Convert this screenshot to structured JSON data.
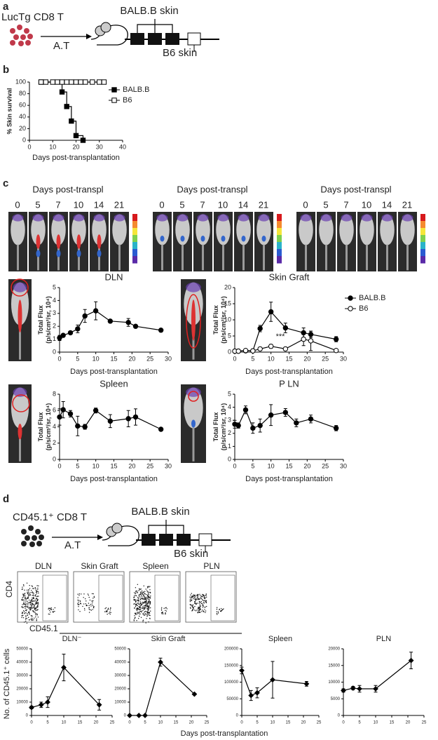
{
  "panel_labels": [
    "a",
    "b",
    "c",
    "d"
  ],
  "diagram_a": {
    "cells": "LucTg CD8 T",
    "transfer": "A.T",
    "graft1": "BALB.B skin",
    "graft2": "B6 skin"
  },
  "images_c": [
    {
      "header": "Days post-transpl",
      "days": [
        "0",
        "5",
        "7",
        "10",
        "14",
        "21"
      ]
    },
    {
      "header": "Days post-transpl",
      "days": [
        "0",
        "5",
        "7",
        "10",
        "14",
        "21"
      ]
    },
    {
      "header": "Days post-transpl",
      "days": [
        "0",
        "5",
        "7",
        "10",
        "14",
        "21"
      ]
    }
  ],
  "diagram_d": {
    "cells": "CD45.1⁺ CD8 T",
    "transfer": "A.T",
    "graft1": "BALB.B skin",
    "graft2": "B6 skin"
  },
  "flow_d": {
    "titles": [
      "DLN",
      "Skin Graft",
      "Spleen",
      "PLN"
    ],
    "ylabel": "CD4",
    "xlabel": "CD45.1"
  },
  "panel_d_axes": {
    "ylabel": "No. of CD45.1⁺ cells",
    "xlabel": "Days post-transplantation"
  },
  "chart_data": [
    {
      "type": "line",
      "step": true,
      "ylabel": [
        "% Skin survival"
      ],
      "xlabel": "Days post-transplantation",
      "xlim": [
        0,
        40
      ],
      "xticks": [
        0,
        10,
        20,
        30,
        40
      ],
      "ylim": [
        0,
        100
      ],
      "yticks": [
        0,
        20,
        40,
        60,
        80,
        100
      ],
      "legend": "right",
      "series": [
        {
          "name": "BALB.B",
          "color": "#000000",
          "marker": "square",
          "fill": "filled",
          "x": [
            5,
            14,
            16,
            18,
            20,
            23
          ],
          "values": [
            100,
            83,
            58,
            33,
            8,
            0
          ]
        },
        {
          "name": "B6",
          "color": "#000000",
          "marker": "square",
          "fill": "open",
          "x": [
            5,
            7,
            10,
            12,
            14,
            16,
            18,
            20,
            22,
            24,
            27,
            30,
            32
          ],
          "values": [
            100,
            100,
            100,
            100,
            100,
            100,
            100,
            100,
            100,
            100,
            100,
            100,
            100
          ]
        }
      ]
    },
    {
      "type": "line",
      "title": "DLN",
      "ylabel": [
        "Total Flux",
        "(p/s/cm²/sr, 10⁴)"
      ],
      "xlabel": "Days post-transplantation",
      "xlim": [
        0,
        30
      ],
      "xticks": [
        0,
        5,
        10,
        15,
        20,
        25,
        30
      ],
      "ylim": [
        0,
        5
      ],
      "yticks": [
        0,
        1,
        2,
        3,
        4,
        5
      ],
      "series": [
        {
          "color": "#000000",
          "marker": "circle",
          "fill": "filled",
          "x": [
            0,
            1,
            3,
            5,
            7,
            10,
            14,
            19,
            21,
            28
          ],
          "values": [
            1.1,
            1.3,
            1.5,
            1.8,
            2.8,
            3.2,
            2.4,
            2.3,
            2.0,
            1.7
          ],
          "errors": [
            0.2,
            0.1,
            0.1,
            0.3,
            0.5,
            0.7,
            0.1,
            0.3,
            0.1,
            0.1
          ]
        }
      ]
    },
    {
      "type": "line",
      "title": "Skin Graft",
      "ylabel": [
        "Total Flux",
        "(p/s/cm²/sr, 10⁴)"
      ],
      "xlabel": "Days post-transplantation",
      "xlim": [
        0,
        30
      ],
      "xticks": [
        0,
        5,
        10,
        15,
        20,
        25,
        30
      ],
      "ylim": [
        0,
        20
      ],
      "yticks": [
        0,
        5,
        10,
        15,
        20
      ],
      "legend": "right",
      "annotation": "***",
      "series": [
        {
          "name": "BALB.B",
          "color": "#000000",
          "marker": "circle",
          "fill": "filled",
          "x": [
            0,
            1,
            3,
            5,
            7,
            10,
            14,
            19,
            21,
            28
          ],
          "values": [
            0.3,
            0.3,
            0.4,
            0.4,
            7.3,
            12.5,
            7.5,
            6,
            5.5,
            4
          ],
          "errors": [
            0.2,
            0.2,
            0.2,
            0.2,
            1,
            3,
            1.5,
            1.5,
            1,
            0.8
          ]
        },
        {
          "name": "B6",
          "color": "#000000",
          "marker": "circle",
          "fill": "open",
          "x": [
            0,
            1,
            3,
            5,
            7,
            10,
            14,
            19,
            21,
            28
          ],
          "values": [
            0.3,
            0.3,
            0.5,
            0.4,
            1,
            1.8,
            1,
            4,
            3.5,
            0.5
          ],
          "errors": [
            0.1,
            0.1,
            0.2,
            0.2,
            0.5,
            0.6,
            0.3,
            2,
            3,
            0.3
          ]
        }
      ]
    },
    {
      "type": "line",
      "title": "Spleen",
      "ylabel": [
        "Total Flux",
        "(p/s/cm²/sr, 10⁴)"
      ],
      "xlabel": "Days post-transplantation",
      "xlim": [
        0,
        30
      ],
      "xticks": [
        0,
        5,
        10,
        15,
        20,
        25,
        30
      ],
      "ylim": [
        0,
        8
      ],
      "yticks": [
        0,
        2,
        4,
        6,
        8
      ],
      "series": [
        {
          "color": "#000000",
          "marker": "circle",
          "fill": "filled",
          "x": [
            0,
            1,
            3,
            5,
            7,
            10,
            14,
            19,
            21,
            28
          ],
          "values": [
            5.2,
            6.1,
            5.6,
            4.1,
            4.0,
            6.0,
            4.7,
            5.0,
            5.2,
            3.7
          ],
          "errors": [
            1,
            1,
            0.4,
            1.2,
            0.3,
            0.3,
            0.8,
            1,
            1,
            0.1
          ]
        }
      ]
    },
    {
      "type": "line",
      "title": "P LN",
      "ylabel": [
        "Total Flux",
        "(p/s/cm²/sr, 10⁴)"
      ],
      "xlabel": "Days post-transplantation",
      "xlim": [
        0,
        30
      ],
      "xticks": [
        0,
        5,
        10,
        15,
        20,
        25,
        30
      ],
      "ylim": [
        0,
        5
      ],
      "yticks": [
        0,
        1,
        2,
        3,
        4,
        5
      ],
      "series": [
        {
          "color": "#000000",
          "marker": "circle",
          "fill": "filled",
          "x": [
            0,
            1,
            3,
            5,
            7,
            10,
            14,
            17,
            21,
            28
          ],
          "values": [
            2.7,
            2.6,
            3.8,
            2.4,
            2.6,
            3.4,
            3.6,
            2.8,
            3.1,
            2.4
          ],
          "errors": [
            0.3,
            0.2,
            0.3,
            0.4,
            0.5,
            0.8,
            0.3,
            0.3,
            0.3,
            0.2
          ]
        }
      ]
    },
    {
      "type": "line",
      "title": "DLN⁻",
      "xlim": [
        0,
        25
      ],
      "xticks": [
        0,
        5,
        10,
        15,
        20,
        25
      ],
      "ylim": [
        0,
        50000
      ],
      "yticks": [
        0,
        10000,
        20000,
        30000,
        40000,
        50000
      ],
      "series": [
        {
          "color": "#000000",
          "marker": "diamond",
          "fill": "filled",
          "x": [
            0,
            3,
            5,
            10,
            21
          ],
          "values": [
            6000,
            8000,
            10000,
            36000,
            8000
          ],
          "errors": [
            1000,
            2000,
            4000,
            10000,
            4000
          ]
        }
      ]
    },
    {
      "type": "line",
      "title": "Skin Graft",
      "xlim": [
        0,
        25
      ],
      "xticks": [
        0,
        5,
        10,
        15,
        20,
        25
      ],
      "ylim": [
        0,
        50000
      ],
      "yticks": [
        0,
        10000,
        20000,
        30000,
        40000,
        50000
      ],
      "series": [
        {
          "color": "#000000",
          "marker": "diamond",
          "fill": "filled",
          "x": [
            0,
            3,
            5,
            10,
            21
          ],
          "values": [
            0,
            0,
            0,
            40000,
            16000
          ],
          "errors": [
            0,
            0,
            0,
            3000,
            500
          ]
        }
      ]
    },
    {
      "type": "line",
      "title": "Spleen",
      "xlim": [
        0,
        25
      ],
      "xticks": [
        0,
        5,
        10,
        15,
        20,
        25
      ],
      "ylim": [
        0,
        200000
      ],
      "yticks": [
        0,
        50000,
        100000,
        150000,
        200000
      ],
      "series": [
        {
          "color": "#000000",
          "marker": "diamond",
          "fill": "filled",
          "x": [
            0,
            3,
            5,
            10,
            21
          ],
          "values": [
            135000,
            60000,
            68000,
            107000,
            95000
          ],
          "errors": [
            10000,
            15000,
            15000,
            55000,
            7000
          ]
        }
      ]
    },
    {
      "type": "line",
      "title": "PLN",
      "xlim": [
        0,
        25
      ],
      "xticks": [
        0,
        5,
        10,
        15,
        20,
        25
      ],
      "ylim": [
        0,
        20000
      ],
      "yticks": [
        0,
        5000,
        10000,
        15000,
        20000
      ],
      "series": [
        {
          "color": "#000000",
          "marker": "diamond",
          "fill": "filled",
          "x": [
            0,
            3,
            5,
            10,
            21
          ],
          "values": [
            7500,
            8200,
            8000,
            8000,
            16500
          ],
          "errors": [
            500,
            500,
            1000,
            1000,
            2500
          ]
        }
      ]
    }
  ]
}
